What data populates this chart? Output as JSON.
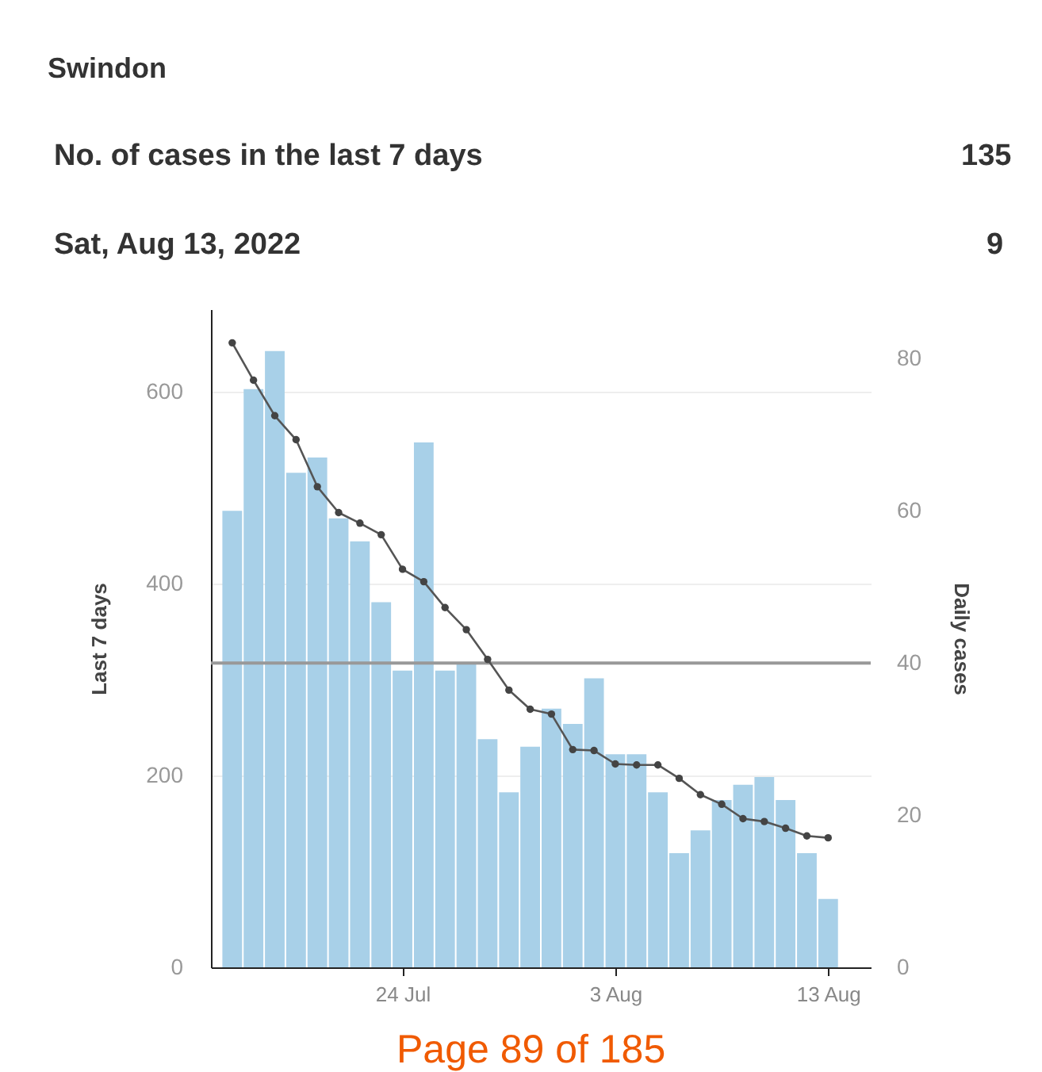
{
  "chart_data": {
    "type": "bar",
    "title": "Swindon",
    "annotations": [
      "No. of cases in the last 7 days",
      "135",
      "Sat, Aug 13, 2022",
      "9",
      "Page 89 of 185"
    ],
    "ylabel": "Last 7 days",
    "y2label": "Daily cases",
    "x": [
      "2022-07-16",
      "2022-07-17",
      "2022-07-18",
      "2022-07-19",
      "2022-07-20",
      "2022-07-21",
      "2022-07-22",
      "2022-07-23",
      "2022-07-24",
      "2022-07-25",
      "2022-07-26",
      "2022-07-27",
      "2022-07-28",
      "2022-07-29",
      "2022-07-30",
      "2022-07-31",
      "2022-08-01",
      "2022-08-02",
      "2022-08-03",
      "2022-08-04",
      "2022-08-05",
      "2022-08-06",
      "2022-08-07",
      "2022-08-08",
      "2022-08-09",
      "2022-08-10",
      "2022-08-11",
      "2022-08-12",
      "2022-08-13"
    ],
    "series": [
      {
        "axis": "y2",
        "color": "#a8d0e8",
        "values": [
          60,
          76,
          81,
          65,
          67,
          59,
          56,
          48,
          39,
          69,
          39,
          40,
          30,
          23,
          29,
          34,
          32,
          38,
          28,
          28,
          23,
          15,
          18,
          22,
          24,
          25,
          22,
          15,
          9
        ]
      },
      {
        "type": "line",
        "axis": "y",
        "color": "#555555",
        "values": [
          651,
          612,
          575,
          550,
          501,
          474,
          463,
          451,
          415,
          402,
          375,
          352,
          321,
          289,
          269,
          264,
          227,
          226,
          212,
          211,
          211,
          197,
          180,
          170,
          155,
          152,
          145,
          137,
          135
        ]
      }
    ],
    "marker": "circle",
    "xlim": [
      "2022-07-15",
      "2022-08-15"
    ],
    "xticks": [
      {
        "value": "2022-07-24",
        "label": "24 Jul"
      },
      {
        "value": "2022-08-03",
        "label": "3 Aug"
      },
      {
        "value": "2022-08-13",
        "label": "13 Aug"
      }
    ],
    "ylim": [
      0,
      686
    ],
    "yticks": [
      0,
      200,
      400,
      600
    ],
    "y2lim": [
      0,
      86.5
    ],
    "y2ticks": [
      0,
      20,
      40,
      60,
      80
    ],
    "grid": "y",
    "ref_lines": [
      {
        "axis": "y2",
        "value": 40,
        "color": "#999999"
      }
    ]
  }
}
